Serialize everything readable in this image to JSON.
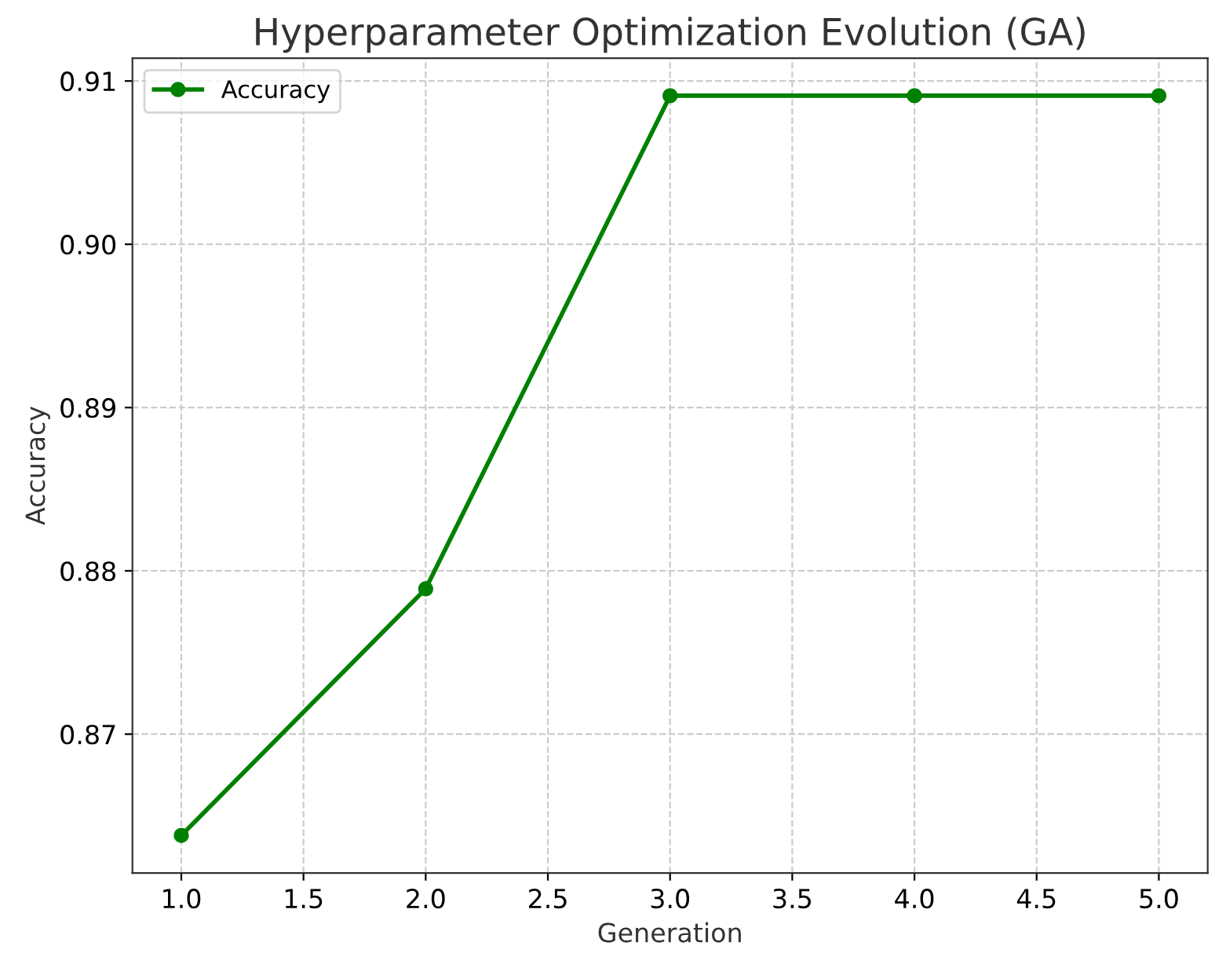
{
  "chart_data": {
    "type": "line",
    "title": "Hyperparameter Optimization Evolution (GA)",
    "xlabel": "Generation",
    "ylabel": "Accuracy",
    "x": [
      1.0,
      2.0,
      3.0,
      4.0,
      5.0
    ],
    "series": [
      {
        "name": "Accuracy",
        "color": "#008000",
        "values": [
          0.8638,
          0.8789,
          0.9091,
          0.9091,
          0.9091
        ]
      }
    ],
    "xlim": [
      0.8,
      5.2
    ],
    "xticks": [
      {
        "value": 1.0,
        "label": "1.0"
      },
      {
        "value": 1.5,
        "label": "1.5"
      },
      {
        "value": 2.0,
        "label": "2.0"
      },
      {
        "value": 2.5,
        "label": "2.5"
      },
      {
        "value": 3.0,
        "label": "3.0"
      },
      {
        "value": 3.5,
        "label": "3.5"
      },
      {
        "value": 4.0,
        "label": "4.0"
      },
      {
        "value": 4.5,
        "label": "4.5"
      },
      {
        "value": 5.0,
        "label": "5.0"
      }
    ],
    "ylim": [
      0.8615,
      0.9114
    ],
    "yticks": [
      0.87,
      0.88,
      0.89,
      {
        "value": 0.9,
        "label": "0.90"
      },
      0.91
    ],
    "grid": true,
    "legend": "top left",
    "marker": "circle",
    "line_style": "solid"
  }
}
